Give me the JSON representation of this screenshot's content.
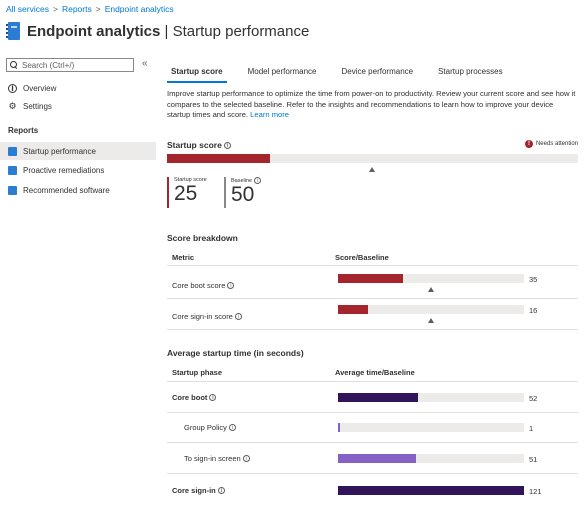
{
  "breadcrumb": [
    "All services",
    "Reports",
    "Endpoint analytics"
  ],
  "header": {
    "title_bold": "Endpoint analytics",
    "title_sep": " | ",
    "title_rest": "Startup performance"
  },
  "sidebar": {
    "search_placeholder": "Search (Ctrl+/)",
    "collapse": "«",
    "items": [
      {
        "label": "Overview"
      },
      {
        "label": "Settings"
      }
    ],
    "reports_heading": "Reports",
    "reports": [
      {
        "label": "Startup performance",
        "active": true
      },
      {
        "label": "Proactive remediations",
        "active": false
      },
      {
        "label": "Recommended software",
        "active": false
      }
    ]
  },
  "tabs": [
    {
      "label": "Startup score",
      "active": true
    },
    {
      "label": "Model performance",
      "active": false
    },
    {
      "label": "Device performance",
      "active": false
    },
    {
      "label": "Startup processes",
      "active": false
    }
  ],
  "description": "Improve startup performance to optimize the time from power-on to productivity. Review your current score and see how it compares to the selected baseline. Refer to the insights and recommendations to learn how to improve your device startup times and score.",
  "learn_more": "Learn more",
  "startup_score": {
    "title": "Startup score",
    "status": "Needs attention",
    "score": 25,
    "baseline": 50,
    "score_label": "Startup score",
    "baseline_label": "Baseline",
    "score_text": "25",
    "baseline_text": "50",
    "score_color": "#a4262c",
    "baseline_color": "#8a8886"
  },
  "breakdown": {
    "title": "Score breakdown",
    "col_metric": "Metric",
    "col_value": "Score/Baseline",
    "max": 100,
    "rows": [
      {
        "label": "Core boot score",
        "score": 35,
        "baseline": 50,
        "value_text": "35"
      },
      {
        "label": "Core sign-in score",
        "score": 16,
        "baseline": 50,
        "value_text": "16"
      }
    ]
  },
  "avg_time": {
    "title": "Average startup time (in seconds)",
    "col_phase": "Startup phase",
    "col_value": "Average time/Baseline",
    "max": 121,
    "rows": [
      {
        "label": "Core boot",
        "value": 52,
        "value_text": "52",
        "bold": true,
        "indent": false,
        "color": "#32145a"
      },
      {
        "label": "Group Policy",
        "value": 1,
        "value_text": "1",
        "bold": false,
        "indent": true,
        "color": "#8661c5"
      },
      {
        "label": "To sign-in screen",
        "value": 51,
        "value_text": "51",
        "bold": false,
        "indent": true,
        "color": "#8661c5"
      },
      {
        "label": "Core sign-in",
        "value": 121,
        "value_text": "121",
        "bold": true,
        "indent": false,
        "color": "#32145a"
      }
    ]
  },
  "icons": {
    "info": "info-icon",
    "needs_attention": "alert-icon",
    "overview": "info-circle-icon",
    "settings": "gear-icon"
  }
}
